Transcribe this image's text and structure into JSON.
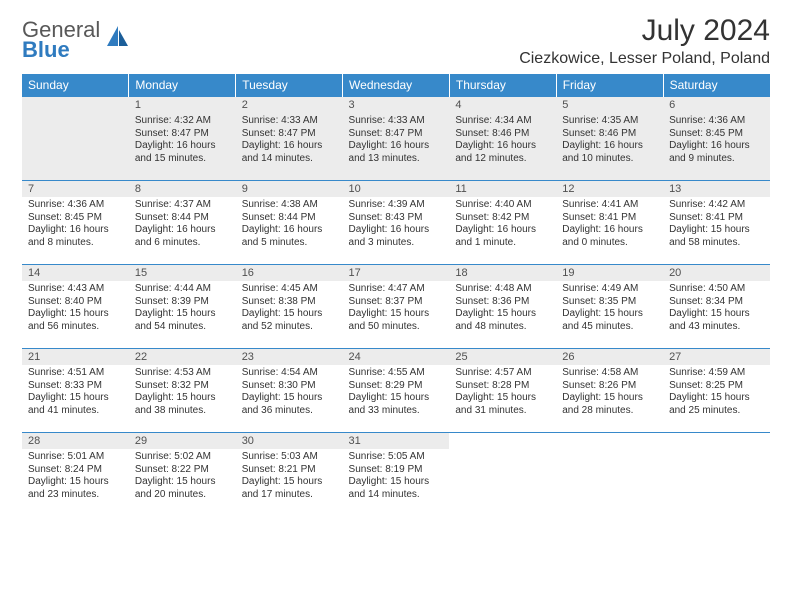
{
  "brand": {
    "name_a": "General",
    "name_b": "Blue"
  },
  "title": "July 2024",
  "location": "Ciezkowice, Lesser Poland, Poland",
  "colors": {
    "header_bg": "#3789ca",
    "header_text": "#ffffff",
    "daynum_bg": "#ececec",
    "border": "#3789ca",
    "logo_gray": "#585858",
    "logo_blue": "#2f7bbf"
  },
  "calendar": {
    "headers": [
      "Sunday",
      "Monday",
      "Tuesday",
      "Wednesday",
      "Thursday",
      "Friday",
      "Saturday"
    ],
    "weeks": [
      [
        null,
        {
          "n": "1",
          "sr": "Sunrise: 4:32 AM",
          "ss": "Sunset: 8:47 PM",
          "dl": "Daylight: 16 hours and 15 minutes."
        },
        {
          "n": "2",
          "sr": "Sunrise: 4:33 AM",
          "ss": "Sunset: 8:47 PM",
          "dl": "Daylight: 16 hours and 14 minutes."
        },
        {
          "n": "3",
          "sr": "Sunrise: 4:33 AM",
          "ss": "Sunset: 8:47 PM",
          "dl": "Daylight: 16 hours and 13 minutes."
        },
        {
          "n": "4",
          "sr": "Sunrise: 4:34 AM",
          "ss": "Sunset: 8:46 PM",
          "dl": "Daylight: 16 hours and 12 minutes."
        },
        {
          "n": "5",
          "sr": "Sunrise: 4:35 AM",
          "ss": "Sunset: 8:46 PM",
          "dl": "Daylight: 16 hours and 10 minutes."
        },
        {
          "n": "6",
          "sr": "Sunrise: 4:36 AM",
          "ss": "Sunset: 8:45 PM",
          "dl": "Daylight: 16 hours and 9 minutes."
        }
      ],
      [
        {
          "n": "7",
          "sr": "Sunrise: 4:36 AM",
          "ss": "Sunset: 8:45 PM",
          "dl": "Daylight: 16 hours and 8 minutes."
        },
        {
          "n": "8",
          "sr": "Sunrise: 4:37 AM",
          "ss": "Sunset: 8:44 PM",
          "dl": "Daylight: 16 hours and 6 minutes."
        },
        {
          "n": "9",
          "sr": "Sunrise: 4:38 AM",
          "ss": "Sunset: 8:44 PM",
          "dl": "Daylight: 16 hours and 5 minutes."
        },
        {
          "n": "10",
          "sr": "Sunrise: 4:39 AM",
          "ss": "Sunset: 8:43 PM",
          "dl": "Daylight: 16 hours and 3 minutes."
        },
        {
          "n": "11",
          "sr": "Sunrise: 4:40 AM",
          "ss": "Sunset: 8:42 PM",
          "dl": "Daylight: 16 hours and 1 minute."
        },
        {
          "n": "12",
          "sr": "Sunrise: 4:41 AM",
          "ss": "Sunset: 8:41 PM",
          "dl": "Daylight: 16 hours and 0 minutes."
        },
        {
          "n": "13",
          "sr": "Sunrise: 4:42 AM",
          "ss": "Sunset: 8:41 PM",
          "dl": "Daylight: 15 hours and 58 minutes."
        }
      ],
      [
        {
          "n": "14",
          "sr": "Sunrise: 4:43 AM",
          "ss": "Sunset: 8:40 PM",
          "dl": "Daylight: 15 hours and 56 minutes."
        },
        {
          "n": "15",
          "sr": "Sunrise: 4:44 AM",
          "ss": "Sunset: 8:39 PM",
          "dl": "Daylight: 15 hours and 54 minutes."
        },
        {
          "n": "16",
          "sr": "Sunrise: 4:45 AM",
          "ss": "Sunset: 8:38 PM",
          "dl": "Daylight: 15 hours and 52 minutes."
        },
        {
          "n": "17",
          "sr": "Sunrise: 4:47 AM",
          "ss": "Sunset: 8:37 PM",
          "dl": "Daylight: 15 hours and 50 minutes."
        },
        {
          "n": "18",
          "sr": "Sunrise: 4:48 AM",
          "ss": "Sunset: 8:36 PM",
          "dl": "Daylight: 15 hours and 48 minutes."
        },
        {
          "n": "19",
          "sr": "Sunrise: 4:49 AM",
          "ss": "Sunset: 8:35 PM",
          "dl": "Daylight: 15 hours and 45 minutes."
        },
        {
          "n": "20",
          "sr": "Sunrise: 4:50 AM",
          "ss": "Sunset: 8:34 PM",
          "dl": "Daylight: 15 hours and 43 minutes."
        }
      ],
      [
        {
          "n": "21",
          "sr": "Sunrise: 4:51 AM",
          "ss": "Sunset: 8:33 PM",
          "dl": "Daylight: 15 hours and 41 minutes."
        },
        {
          "n": "22",
          "sr": "Sunrise: 4:53 AM",
          "ss": "Sunset: 8:32 PM",
          "dl": "Daylight: 15 hours and 38 minutes."
        },
        {
          "n": "23",
          "sr": "Sunrise: 4:54 AM",
          "ss": "Sunset: 8:30 PM",
          "dl": "Daylight: 15 hours and 36 minutes."
        },
        {
          "n": "24",
          "sr": "Sunrise: 4:55 AM",
          "ss": "Sunset: 8:29 PM",
          "dl": "Daylight: 15 hours and 33 minutes."
        },
        {
          "n": "25",
          "sr": "Sunrise: 4:57 AM",
          "ss": "Sunset: 8:28 PM",
          "dl": "Daylight: 15 hours and 31 minutes."
        },
        {
          "n": "26",
          "sr": "Sunrise: 4:58 AM",
          "ss": "Sunset: 8:26 PM",
          "dl": "Daylight: 15 hours and 28 minutes."
        },
        {
          "n": "27",
          "sr": "Sunrise: 4:59 AM",
          "ss": "Sunset: 8:25 PM",
          "dl": "Daylight: 15 hours and 25 minutes."
        }
      ],
      [
        {
          "n": "28",
          "sr": "Sunrise: 5:01 AM",
          "ss": "Sunset: 8:24 PM",
          "dl": "Daylight: 15 hours and 23 minutes."
        },
        {
          "n": "29",
          "sr": "Sunrise: 5:02 AM",
          "ss": "Sunset: 8:22 PM",
          "dl": "Daylight: 15 hours and 20 minutes."
        },
        {
          "n": "30",
          "sr": "Sunrise: 5:03 AM",
          "ss": "Sunset: 8:21 PM",
          "dl": "Daylight: 15 hours and 17 minutes."
        },
        {
          "n": "31",
          "sr": "Sunrise: 5:05 AM",
          "ss": "Sunset: 8:19 PM",
          "dl": "Daylight: 15 hours and 14 minutes."
        },
        null,
        null,
        null
      ]
    ]
  }
}
